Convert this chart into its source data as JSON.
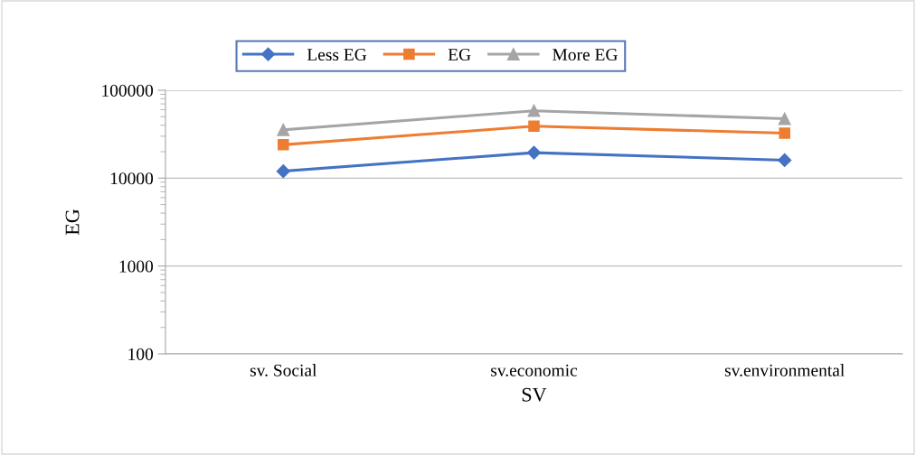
{
  "chart_data": {
    "type": "line",
    "xlabel": "SV",
    "ylabel": "EG",
    "categories": [
      "sv. Social",
      "sv.economic",
      "sv.environmental"
    ],
    "series": [
      {
        "name": "Less EG",
        "color": "#4472c4",
        "values": [
          12000,
          19500,
          16000
        ],
        "marker": "diamond"
      },
      {
        "name": "EG",
        "color": "#ed7d31",
        "values": [
          24000,
          39000,
          32500
        ],
        "marker": "square"
      },
      {
        "name": "More EG",
        "color": "#a5a5a5",
        "values": [
          35500,
          58500,
          47500
        ],
        "marker": "triangle"
      }
    ],
    "log": true,
    "ylim": [
      100,
      100000
    ],
    "yticks": [
      100,
      1000,
      10000,
      100000
    ],
    "grid": "y",
    "legend": "top",
    "line_style": "solid"
  }
}
